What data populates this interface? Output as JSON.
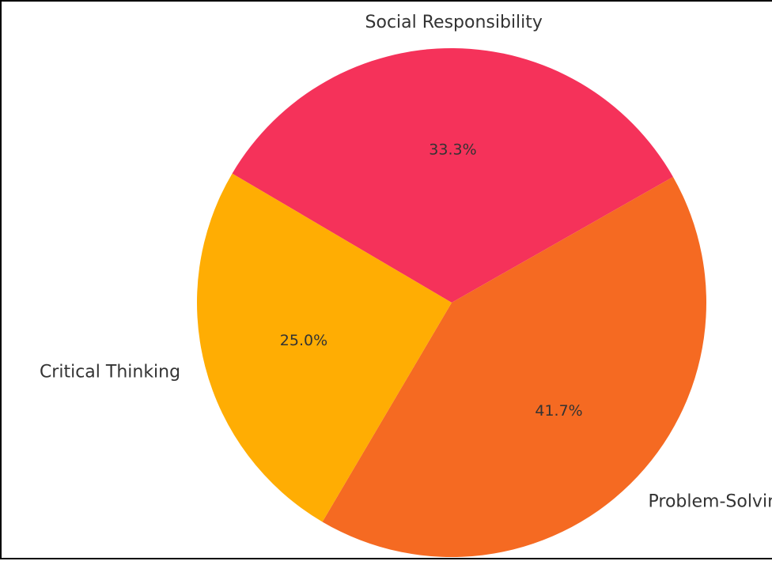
{
  "chart_data": {
    "type": "pie",
    "categories": [
      "Social Responsibility",
      "Problem-Solving",
      "Critical Thinking"
    ],
    "values": [
      33.3,
      41.7,
      25.0
    ],
    "percent_labels": [
      "33.3%",
      "41.7%",
      "25.0%"
    ],
    "colors": [
      "#f5325a",
      "#f56a22",
      "#ffad03"
    ],
    "legend": "none",
    "grid": false
  }
}
